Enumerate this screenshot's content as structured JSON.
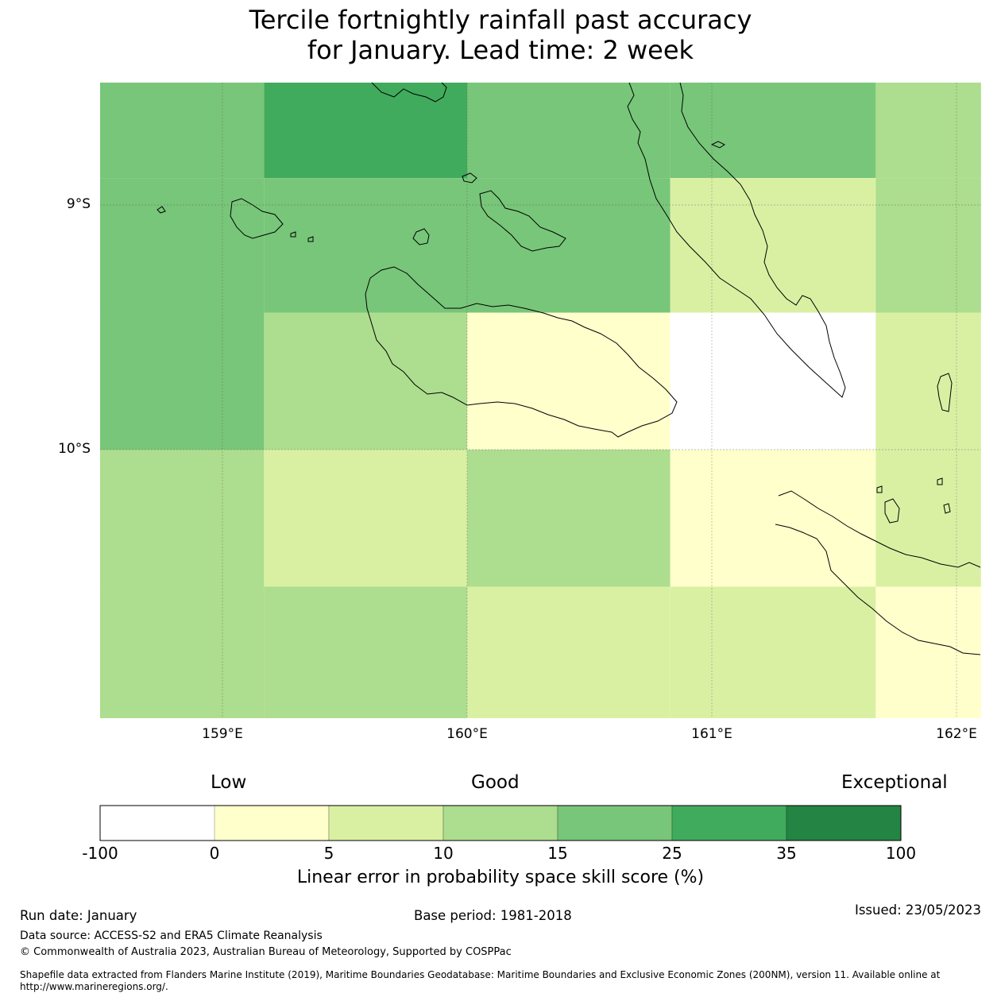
{
  "title": {
    "line1": "Tercile fortnightly rainfall past accuracy",
    "line2": "for January. Lead time: 2 week"
  },
  "map": {
    "lat_labels": [
      "9°S",
      "10°S"
    ],
    "lon_labels": [
      "159°E",
      "160°E",
      "161°E",
      "162°E"
    ],
    "gridlines": true
  },
  "chart_data": {
    "type": "heatmap",
    "title": "Tercile fortnightly rainfall past accuracy for January. Lead time: 2 week",
    "x_range": [
      158.5,
      162.1
    ],
    "y_range": [
      -11.1,
      -8.5
    ],
    "cell_lon_edges": [
      158.5,
      159.17,
      160.0,
      160.83,
      161.67,
      162.1
    ],
    "cell_lat_edges": [
      -8.5,
      -8.89,
      -9.44,
      -10.0,
      -10.56,
      -11.1
    ],
    "cells_bins": [
      [
        4,
        5,
        4,
        4,
        3
      ],
      [
        4,
        4,
        4,
        2,
        3
      ],
      [
        4,
        3,
        1,
        0,
        2
      ],
      [
        3,
        2,
        3,
        1,
        2
      ],
      [
        3,
        3,
        2,
        2,
        1
      ]
    ],
    "colorbar": {
      "bounds": [
        -100,
        0,
        5,
        10,
        15,
        25,
        35,
        100
      ],
      "colors": [
        "#ffffff",
        "#ffffcc",
        "#d9f0a3",
        "#addd8e",
        "#78c679",
        "#41ab5d",
        "#238443"
      ],
      "categories": [
        "Low",
        "Good",
        "Exceptional"
      ],
      "label": "Linear error in probability space skill score (%)"
    }
  },
  "footer": {
    "run_date": "Run date: January",
    "base_period": "Base period: 1981-2018",
    "issued": "Issued: 23/05/2023",
    "data_source": "Data source: ACCESS-S2 and ERA5 Climate Reanalysis",
    "copyright": "© Commonwealth of Australia 2023, Australian Bureau of Meteorology, Supported by COSPPac",
    "shapefile": "Shapefile data extracted from Flanders Marine Institute (2019), Maritime Boundaries Geodatabase: Maritime Boundaries and Exclusive Economic Zones (200NM), version 11. Available online at http://www.marineregions.org/."
  }
}
